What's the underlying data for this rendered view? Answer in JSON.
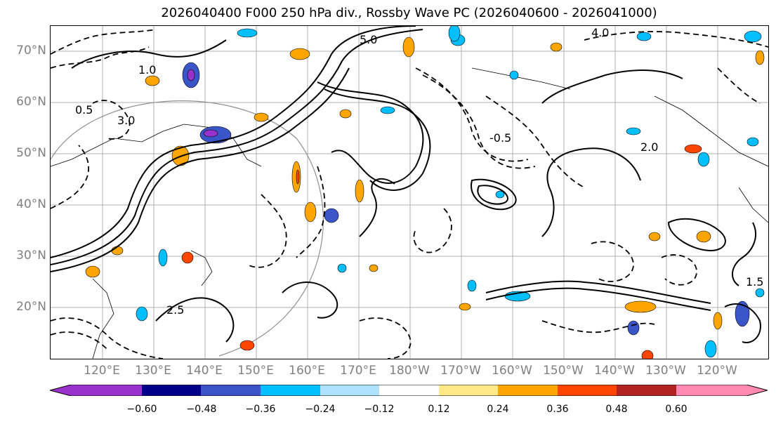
{
  "title": "2026040400 F000 250 hPa div., Rossby Wave PC (2026040600 - 2026041000)",
  "map": {
    "lat_labels": [
      "70°N",
      "60°N",
      "50°N",
      "40°N",
      "30°N",
      "20°N"
    ],
    "lon_labels": [
      "120°E",
      "130°E",
      "140°E",
      "150°E",
      "160°E",
      "170°E",
      "180°W",
      "170°W",
      "160°W",
      "150°W",
      "140°W",
      "130°W",
      "120°W"
    ],
    "contour_labels": [
      "4.0",
      "3.0",
      "5.0",
      "1.0",
      "0.5",
      "2.0",
      "-0.5",
      "1.5",
      "2.5"
    ]
  },
  "colorbar": {
    "ticks": [
      "−0.60",
      "−0.48",
      "−0.36",
      "−0.24",
      "−0.12",
      "0.12",
      "0.24",
      "0.36",
      "0.48",
      "0.60"
    ],
    "colors": [
      "#9932cc",
      "#00008b",
      "#3a55c8",
      "#00bfff",
      "#b0e2ff",
      "#ffffff",
      "#ffe888",
      "#ffa500",
      "#ff4500",
      "#b22222",
      "#ff89b0"
    ]
  }
}
